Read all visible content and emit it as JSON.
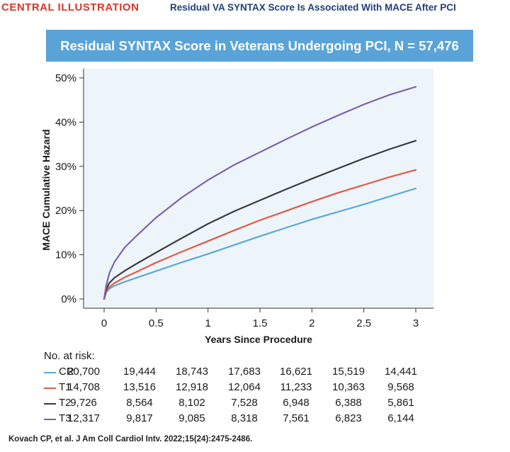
{
  "header": {
    "label": "CENTRAL ILLUSTRATION",
    "subtitle": "Residual VA SYNTAX Score Is Associated With MACE After PCI"
  },
  "banner": {
    "title": "Residual SYNTAX Score in Veterans Undergoing PCI, N = 57,476"
  },
  "chart_data": {
    "type": "line",
    "title": "Residual SYNTAX Score in Veterans Undergoing PCI, N = 57,476",
    "xlabel": "Years Since Procedure",
    "ylabel": "MACE Cumulative Hazard",
    "xlim": [
      0,
      3
    ],
    "ylim": [
      0,
      50
    ],
    "x_ticks": [
      0,
      0.5,
      1,
      1.5,
      2,
      2.5,
      3
    ],
    "x_tick_labels": [
      "0",
      "0.5",
      "1",
      "1.5",
      "2",
      "2.5",
      "3"
    ],
    "y_ticks": [
      0,
      10,
      20,
      30,
      40,
      50
    ],
    "y_tick_labels": [
      "0%",
      "10%",
      "20%",
      "30%",
      "40%",
      "50%"
    ],
    "grid": false,
    "x": [
      0,
      0.02,
      0.05,
      0.1,
      0.2,
      0.3,
      0.5,
      0.75,
      1,
      1.25,
      1.5,
      1.75,
      2,
      2.25,
      2.5,
      2.75,
      3
    ],
    "series": [
      {
        "name": "CR",
        "color": "#5aa9d6",
        "values": [
          0,
          1.5,
          2.3,
          3.0,
          3.9,
          4.7,
          6.3,
          8.3,
          10.2,
          12.2,
          14.2,
          16.1,
          18.0,
          19.7,
          21.4,
          23.2,
          25.0
        ]
      },
      {
        "name": "T1",
        "color": "#e15a47",
        "values": [
          0,
          1.7,
          2.7,
          3.6,
          4.9,
          6.0,
          8.2,
          10.7,
          13.1,
          15.5,
          17.8,
          19.9,
          22.0,
          24.0,
          25.8,
          27.6,
          29.2
        ]
      },
      {
        "name": "T2",
        "color": "#3a3a3a",
        "values": [
          0,
          2.2,
          3.6,
          4.8,
          6.4,
          7.8,
          10.5,
          13.8,
          17.0,
          19.8,
          22.3,
          24.8,
          27.2,
          29.5,
          31.8,
          33.9,
          35.8
        ]
      },
      {
        "name": "T3",
        "color": "#7a62ad",
        "values": [
          0,
          3.0,
          5.8,
          8.4,
          11.7,
          14.0,
          18.4,
          23.0,
          26.9,
          30.3,
          33.2,
          36.1,
          38.9,
          41.5,
          44.0,
          46.2,
          48.0
        ]
      }
    ]
  },
  "risk_table": {
    "title": "No. at risk:",
    "rows": [
      {
        "name": "CR",
        "color": "#5aa9d6",
        "values": [
          "20,700",
          "19,444",
          "18,743",
          "17,683",
          "16,621",
          "15,519",
          "14,441"
        ]
      },
      {
        "name": "T1",
        "color": "#e15a47",
        "values": [
          "14,708",
          "13,516",
          "12,918",
          "12,064",
          "11,233",
          "10,363",
          "9,568"
        ]
      },
      {
        "name": "T2",
        "color": "#3a3a3a",
        "values": [
          "9,726",
          "8,564",
          "8,102",
          "7,528",
          "6,948",
          "6,388",
          "5,861"
        ]
      },
      {
        "name": "T3",
        "color": "#7a62ad",
        "values": [
          "12,317",
          "9,817",
          "9,085",
          "8,318",
          "7,561",
          "6,823",
          "6,144"
        ]
      }
    ]
  },
  "footer": {
    "citation": "Kovach CP, et al. J Am Coll Cardiol Intv. 2022;15(24):2475-2486."
  }
}
